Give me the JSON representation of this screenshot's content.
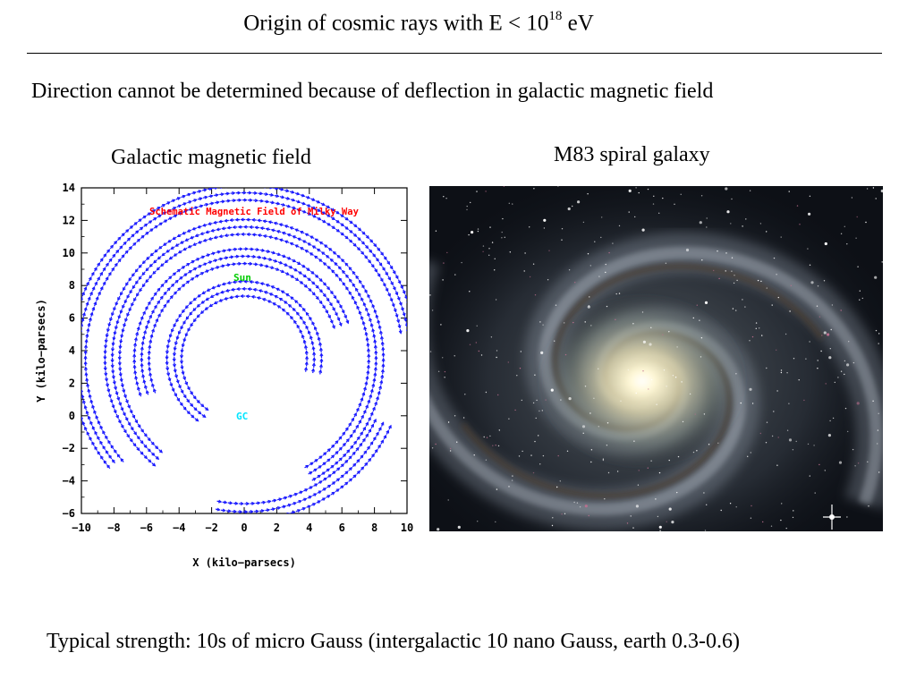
{
  "slide": {
    "title_prefix": "Origin of cosmic rays with E < 10",
    "title_exponent": "18",
    "title_suffix": " eV",
    "subtitle": "Direction cannot be determined because of deflection in galactic magnetic field",
    "left_caption": "Galactic magnetic field",
    "right_caption": "M83 spiral galaxy",
    "footer": "Typical strength: 10s of micro Gauss (intergalactic 10 nano Gauss, earth 0.3-0.6)"
  },
  "chart_data": {
    "type": "scatter",
    "title": "Schematic Magnetic Field of Milky Way",
    "xlabel": "X (kilo−parsecs)",
    "ylabel": "Y (kilo−parsecs)",
    "xlim": [
      -10,
      10
    ],
    "ylim": [
      -6,
      14
    ],
    "xticks": [
      "−10",
      "−8",
      "−6",
      "−4",
      "−2",
      "0",
      "2",
      "4",
      "6",
      "8",
      "10"
    ],
    "yticks": [
      "−6",
      "−4",
      "−2",
      "0",
      "2",
      "4",
      "6",
      "8",
      "10",
      "12",
      "14"
    ],
    "annotations": [
      {
        "text": "Sun",
        "x": 0,
        "y": 8.5
      },
      {
        "text": "GC",
        "x": 0,
        "y": 0
      }
    ],
    "spiral_center": [
      0,
      3.5
    ],
    "arms": [
      {
        "r": 4.3,
        "spread": 0.45,
        "lanes": 3,
        "start_deg": -10,
        "end_deg": 235,
        "direction": "ccw"
      },
      {
        "r": 6.3,
        "spread": 0.45,
        "lanes": 3,
        "start_deg": 20,
        "end_deg": 200,
        "direction": "cw"
      },
      {
        "r": 8.1,
        "spread": 0.45,
        "lanes": 3,
        "start_deg": -60,
        "end_deg": 230,
        "direction": "ccw"
      },
      {
        "r": 10.2,
        "spread": 0.45,
        "lanes": 3,
        "start_deg": 10,
        "end_deg": 220,
        "direction": "cw"
      },
      {
        "r": 9.4,
        "spread": 0.5,
        "lanes": 3,
        "start_deg": -100,
        "end_deg": -25,
        "direction": "ccw"
      }
    ],
    "colors": {
      "vectors": "#1a1aff",
      "title": "#ff0000",
      "sun": "#00cc00",
      "gc": "#00e5ff"
    }
  },
  "image": {
    "subject": "M83 spiral galaxy",
    "colors": {
      "core": "#fff6c8",
      "arms": "#8e9aa8",
      "dust": "#4a3b30",
      "sky": "#0d1016",
      "hii": "#c07090"
    }
  }
}
